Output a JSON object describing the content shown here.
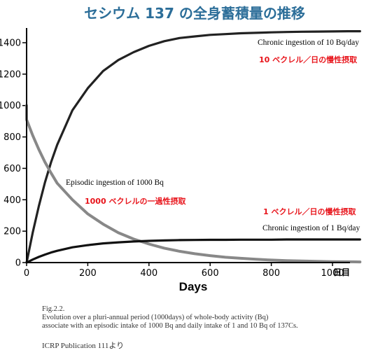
{
  "chart_data": {
    "type": "line",
    "title": "セシウム 137 の全身蓄積量の推移",
    "xlabel": "Days",
    "x_unit_label": "日目",
    "ylabel": "",
    "xlim": [
      0,
      1100
    ],
    "ylim": [
      0,
      1500
    ],
    "x_ticks": [
      0,
      200,
      400,
      600,
      800,
      1000
    ],
    "y_ticks": [
      0,
      200,
      400,
      600,
      800,
      1000,
      1200,
      1400
    ],
    "grid": false,
    "x": [
      0,
      20,
      40,
      60,
      80,
      100,
      150,
      200,
      250,
      300,
      350,
      400,
      450,
      500,
      550,
      600,
      650,
      700,
      750,
      800,
      850,
      900,
      950,
      1000,
      1050,
      1090
    ],
    "series": [
      {
        "name": "Chronic ingestion of 10 Bq/day",
        "name_ja": "10 ベクレル／日の慢性摂取",
        "color": "#222222",
        "values": [
          0,
          190,
          360,
          510,
          640,
          750,
          970,
          1110,
          1220,
          1290,
          1340,
          1380,
          1410,
          1430,
          1440,
          1450,
          1455,
          1460,
          1463,
          1466,
          1468,
          1470,
          1471,
          1472,
          1473,
          1473
        ]
      },
      {
        "name": "Episodic ingestion of 1000 Bq",
        "name_ja": "1000 ベクレルの一過性摂取",
        "color": "#888888",
        "values": [
          910,
          810,
          720,
          640,
          570,
          505,
          400,
          310,
          245,
          190,
          150,
          118,
          92,
          72,
          56,
          44,
          34,
          27,
          21,
          16,
          12,
          10,
          8,
          6,
          5,
          4
        ]
      },
      {
        "name": "Chronic ingestion of 1 Bq/day",
        "name_ja": "1 ベクレル／日の慢性摂取",
        "color": "#111111",
        "values": [
          0,
          19,
          36,
          51,
          64,
          75,
          97,
          111,
          122,
          129,
          134,
          138,
          141,
          143,
          144,
          145,
          145,
          146,
          146,
          146,
          147,
          147,
          147,
          147,
          147,
          147
        ]
      }
    ],
    "episodic_initial_spike": 1000
  },
  "caption": {
    "fig": "Fig.2.2.",
    "line1": "Evolution over a pluri-annual period (1000days) of whole-body activity (Bq)",
    "line2": "associate with an episodic intake of 1000 Bq and daily intake of 1 and 10 Bq of 137Cs.",
    "source": "ICRP Publication 111より"
  }
}
